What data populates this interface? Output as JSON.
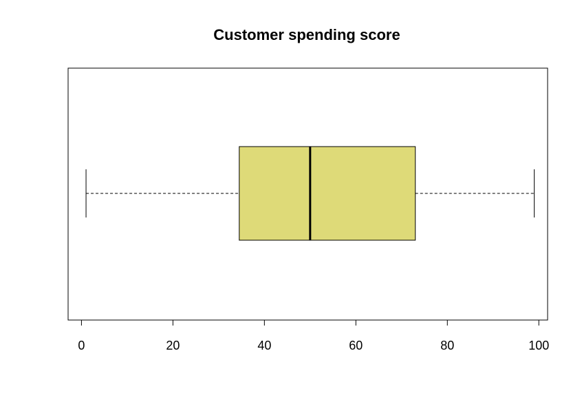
{
  "chart_data": {
    "type": "boxplot",
    "orientation": "horizontal",
    "title": "Customer spending score",
    "xlabel": "",
    "ylabel": "",
    "xlim": [
      -2.92,
      101.92
    ],
    "x_ticks": [
      0,
      20,
      40,
      60,
      80,
      100
    ],
    "x_tick_labels": [
      "0",
      "20",
      "40",
      "60",
      "80",
      "100"
    ],
    "box": {
      "min": 1,
      "q1": 34.5,
      "median": 50,
      "q3": 73,
      "max": 99
    },
    "box_fill_color": "#DEDA78",
    "line_color": "#000000",
    "grid": false,
    "legend": "none"
  }
}
